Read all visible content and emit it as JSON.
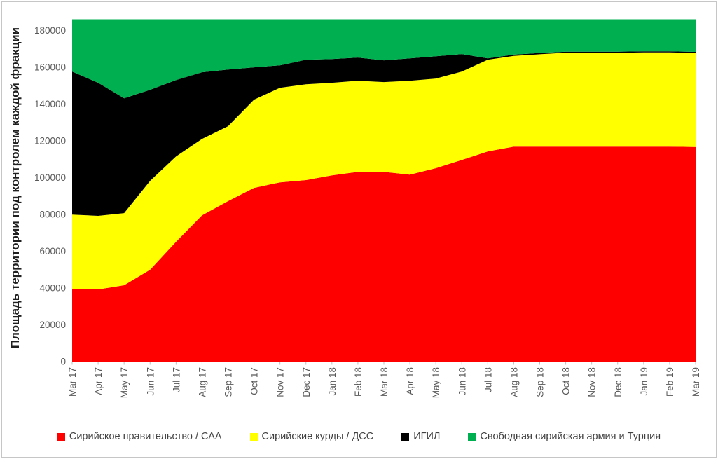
{
  "chart": {
    "y_axis_title": "Площадь территории под контролем каждой фракции"
  },
  "chart_data": {
    "type": "area",
    "stacked": true,
    "title": "",
    "xlabel": "",
    "ylabel": "Площадь территории под контролем каждой фракции",
    "ylim": [
      0,
      190000
    ],
    "ytick_step": 20000,
    "ytick_top_label": 180000,
    "grid": false,
    "legend_position": "bottom",
    "axis_text_color": "#595959",
    "axis_line_color": "#bfbfbf",
    "categories": [
      "Mar 17",
      "Apr 17",
      "May 17",
      "Jun 17",
      "Jul 17",
      "Aug 17",
      "Sep 17",
      "Oct 17",
      "Nov 17",
      "Dec 17",
      "Jan 18",
      "Feb 18",
      "Mar 18",
      "Apr 18",
      "May 18",
      "Jun 18",
      "Jul 18",
      "Aug 18",
      "Sep 18",
      "Oct 18",
      "Nov 18",
      "Dec 18",
      "Jan 19",
      "Feb 19",
      "Mar 19"
    ],
    "series": [
      {
        "id": "syrian-government",
        "name": "Сирийское правительство / САА",
        "color": "#ff0000",
        "values": [
          39600,
          39200,
          41500,
          49900,
          65100,
          79500,
          87200,
          94400,
          97400,
          98600,
          101200,
          103100,
          103100,
          101600,
          105100,
          109600,
          114200,
          116800,
          116800,
          116800,
          116800,
          116800,
          116800,
          116800,
          116600
        ]
      },
      {
        "id": "syrian-kurds",
        "name": "Сирийские курды / ДСС",
        "color": "#ffff00",
        "values": [
          40300,
          40000,
          39200,
          48300,
          46400,
          41500,
          40700,
          47900,
          51400,
          52100,
          50300,
          49500,
          48800,
          51000,
          48700,
          48000,
          49800,
          49300,
          50200,
          51000,
          51000,
          51000,
          51200,
          51200,
          51100
        ]
      },
      {
        "id": "isil",
        "name": "ИГИЛ",
        "color": "#000000",
        "values": [
          77700,
          72300,
          62400,
          49500,
          41500,
          36200,
          30800,
          17600,
          12200,
          13300,
          12900,
          12600,
          11800,
          12200,
          12100,
          9500,
          800,
          700,
          700,
          600,
          600,
          600,
          600,
          600,
          600
        ]
      },
      {
        "id": "fsa-turkey",
        "name": "Свободная сирийская армия и Турция",
        "color": "#00b050",
        "values": [
          28400,
          34500,
          42900,
          38300,
          33000,
          28800,
          27300,
          26100,
          25000,
          22000,
          21600,
          20800,
          22300,
          21200,
          20100,
          18900,
          21200,
          19200,
          18300,
          17600,
          17600,
          17600,
          17400,
          17400,
          17700
        ]
      }
    ]
  }
}
